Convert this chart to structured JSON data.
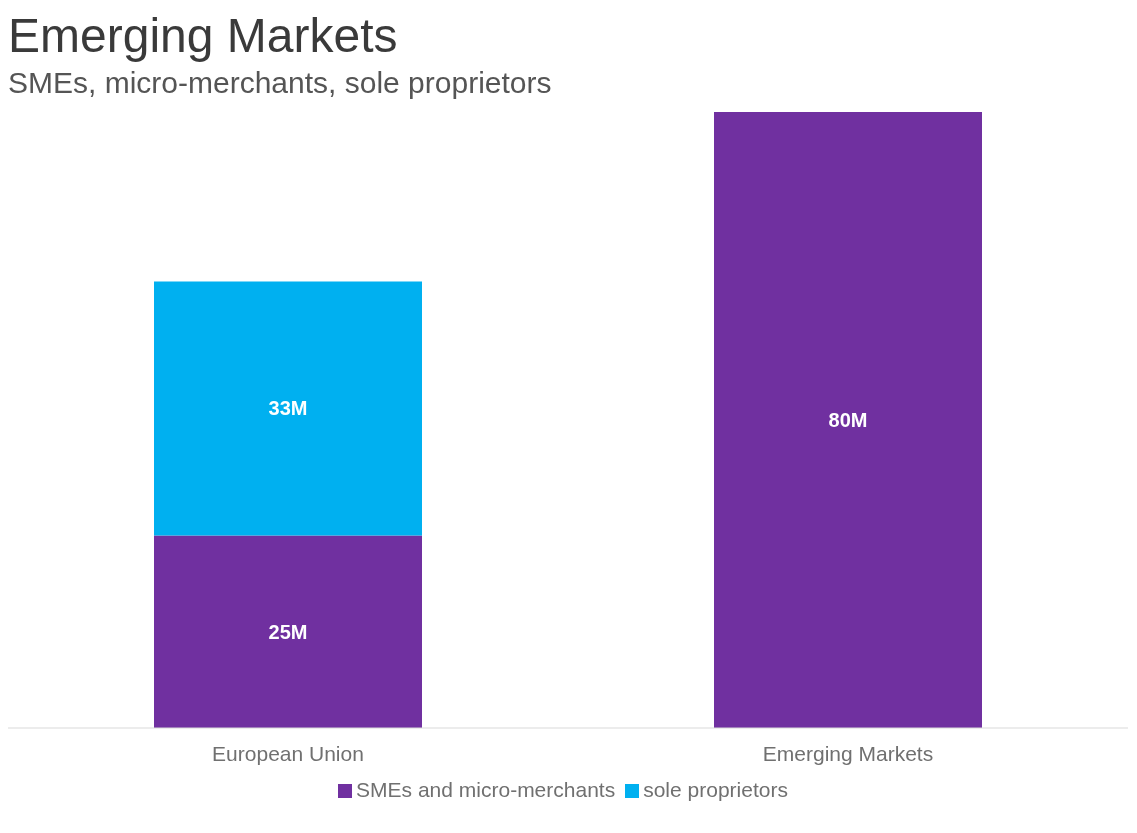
{
  "chart_data": {
    "type": "bar",
    "title": "Emerging Markets",
    "subtitle": "SMEs, micro-merchants, sole proprietors",
    "categories": [
      "European Union",
      "Emerging Markets"
    ],
    "stacked": true,
    "legend": "bottom",
    "grid": false,
    "series": [
      {
        "name": "SMEs and micro-merchants",
        "color": "#7030a0",
        "values": [
          25,
          80
        ],
        "value_labels": [
          "25M",
          "80M"
        ]
      },
      {
        "name": "sole proprietors",
        "color": "#00b0f0",
        "values": [
          33,
          null
        ],
        "value_labels": [
          "33M",
          null
        ]
      }
    ]
  }
}
